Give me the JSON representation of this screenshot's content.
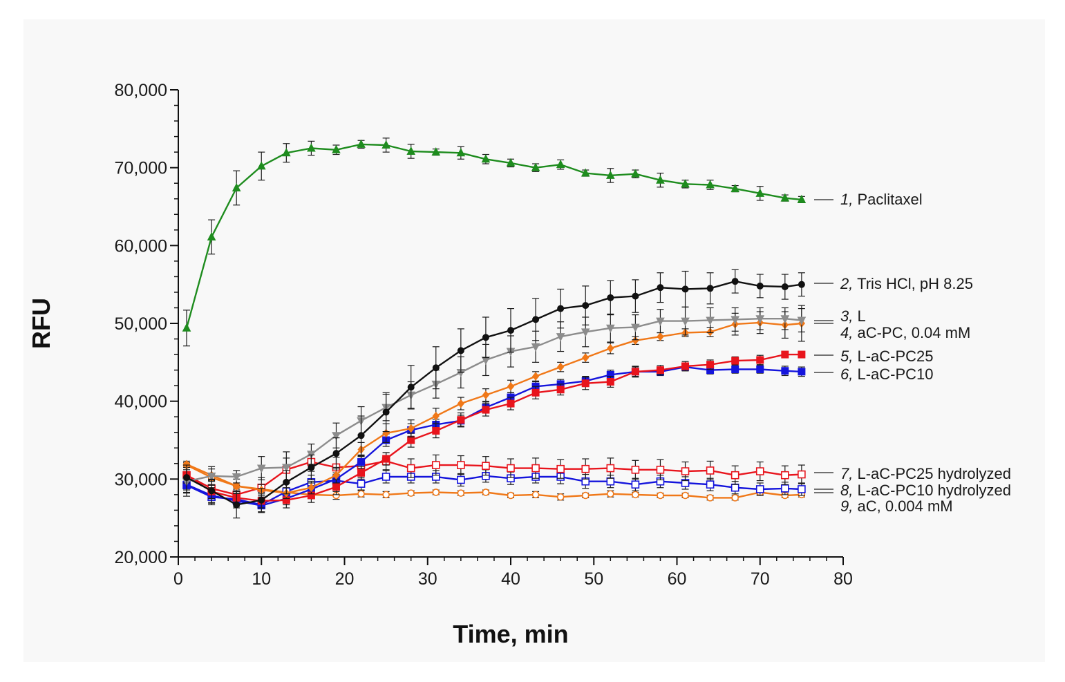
{
  "chart_data": {
    "type": "line",
    "title": "",
    "xlabel": "Time, min",
    "ylabel": "RFU",
    "xlim": [
      0,
      80
    ],
    "ylim": [
      20000,
      80000
    ],
    "xticks": [
      0,
      10,
      20,
      30,
      40,
      50,
      60,
      70,
      80
    ],
    "xtick_labels": [
      "0",
      "10",
      "20",
      "30",
      "40",
      "50",
      "60",
      "70",
      "80"
    ],
    "yticks": [
      20000,
      30000,
      40000,
      50000,
      60000,
      70000,
      80000
    ],
    "ytick_labels": [
      "20,000",
      "30,000",
      "40,000",
      "50,000",
      "60,000",
      "70,000",
      "80,000"
    ],
    "grid": false,
    "legend_placement": "right, labels at line ends",
    "x": [
      1,
      4,
      7,
      10,
      13,
      16,
      19,
      22,
      25,
      28,
      31,
      34,
      37,
      40,
      43,
      46,
      49,
      52,
      55,
      58,
      61,
      64,
      67,
      70,
      73,
      75
    ],
    "series": [
      {
        "num": "1,",
        "name": "Paclitaxel",
        "color": "#1e8c1e",
        "marker": "triangle",
        "filled": true,
        "values": [
          49400,
          61100,
          67400,
          70200,
          71900,
          72500,
          72300,
          73000,
          72900,
          72100,
          72000,
          71900,
          71100,
          70600,
          70000,
          70400,
          69300,
          69000,
          69200,
          68400,
          67900,
          67800,
          67300,
          66700,
          66100,
          65900
        ],
        "errors": [
          2300,
          2200,
          2200,
          1800,
          1200,
          900,
          600,
          500,
          900,
          900,
          400,
          800,
          600,
          500,
          500,
          600,
          400,
          900,
          500,
          900,
          500,
          600,
          400,
          900,
          400,
          400
        ]
      },
      {
        "num": "2,",
        "name": "Tris HCl, pH 8.25",
        "color": "#111111",
        "marker": "circle",
        "filled": true,
        "values": [
          30200,
          28500,
          26700,
          27300,
          29600,
          31500,
          33300,
          35600,
          38600,
          41800,
          44300,
          46500,
          48200,
          49100,
          50500,
          51900,
          52300,
          53300,
          53500,
          54600,
          54400,
          54500,
          55400,
          54800,
          54700,
          55000
        ],
        "errors": [
          1600,
          1500,
          1700,
          1500,
          1500,
          1600,
          2000,
          2500,
          2500,
          2800,
          2700,
          2800,
          2600,
          2800,
          2700,
          2500,
          2500,
          2200,
          2100,
          1900,
          2300,
          2000,
          1500,
          1500,
          1600,
          1500
        ]
      },
      {
        "num": "3,",
        "name": "L",
        "color": "#8c8c8c",
        "marker": "triangle-down",
        "filled": true,
        "values": [
          29700,
          30400,
          30300,
          31400,
          31500,
          33200,
          35600,
          37500,
          39200,
          40800,
          42200,
          43700,
          45300,
          46400,
          47000,
          48300,
          48900,
          49400,
          49500,
          50300,
          50300,
          50400,
          50500,
          50600,
          50600,
          50400
        ],
        "errors": [
          1500,
          1200,
          800,
          1500,
          2000,
          1300,
          1600,
          1800,
          1700,
          1700,
          1800,
          2000,
          2000,
          2000,
          2000,
          1900,
          1900,
          1800,
          1600,
          1500,
          1800,
          1600,
          1500,
          1400,
          1400,
          1500
        ]
      },
      {
        "num": "4,",
        "name": "aC-PC, 0.04 mM",
        "color": "#f07818",
        "marker": "diamond",
        "filled": true,
        "values": [
          31900,
          30500,
          29100,
          28600,
          28200,
          28900,
          30500,
          33800,
          35900,
          36500,
          38100,
          39700,
          40800,
          41900,
          43200,
          44400,
          45600,
          46800,
          47800,
          48300,
          48800,
          48900,
          49900,
          50100,
          49800,
          50000
        ],
        "errors": [
          400,
          800,
          900,
          700,
          700,
          800,
          1000,
          900,
          1200,
          1100,
          1000,
          800,
          800,
          800,
          600,
          600,
          600,
          700,
          500,
          500,
          500,
          600,
          1400,
          1400,
          1700,
          2300
        ]
      },
      {
        "num": "5,",
        "name": "L-aC-PC25",
        "color": "#e8141c",
        "marker": "square",
        "filled": true,
        "values": [
          30500,
          28400,
          27600,
          27200,
          27300,
          27900,
          29000,
          30800,
          32600,
          35000,
          36200,
          37600,
          38900,
          39700,
          41100,
          41500,
          42300,
          42500,
          43800,
          44000,
          44500,
          44700,
          45200,
          45300,
          46000,
          46000
        ],
        "errors": [
          1000,
          900,
          900,
          900,
          1000,
          900,
          1000,
          800,
          800,
          900,
          900,
          900,
          800,
          800,
          800,
          700,
          800,
          700,
          700,
          600,
          600,
          600,
          500,
          600,
          400,
          400
        ]
      },
      {
        "num": "6,",
        "name": "L-aC-PC10",
        "color": "#1414dc",
        "marker": "square",
        "filled": true,
        "values": [
          29300,
          27900,
          27200,
          26600,
          27500,
          28700,
          30000,
          32200,
          35000,
          36300,
          37000,
          37500,
          39200,
          40500,
          41900,
          42200,
          42600,
          43400,
          43800,
          43800,
          44400,
          44000,
          44100,
          44100,
          43900,
          43800
        ],
        "errors": [
          1000,
          1000,
          900,
          800,
          800,
          800,
          800,
          800,
          800,
          800,
          700,
          700,
          700,
          600,
          600,
          600,
          600,
          600,
          600,
          500,
          500,
          500,
          500,
          500,
          600,
          600
        ]
      },
      {
        "num": "7,",
        "name": "L-aC-PC25 hydrolyzed",
        "color": "#e8141c",
        "marker": "square",
        "filled": false,
        "values": [
          30500,
          28800,
          28000,
          28900,
          31200,
          32200,
          31500,
          31700,
          32300,
          31400,
          31800,
          31800,
          31700,
          31400,
          31400,
          31300,
          31300,
          31400,
          31200,
          31200,
          31000,
          31100,
          30500,
          31000,
          30500,
          30600
        ],
        "errors": [
          1300,
          1100,
          1200,
          1300,
          1500,
          1200,
          1300,
          1200,
          1100,
          1200,
          1300,
          1200,
          1200,
          1200,
          1300,
          1200,
          1300,
          1300,
          1200,
          1300,
          1200,
          1200,
          1200,
          1200,
          1200,
          1200
        ]
      },
      {
        "num": "8,",
        "name": "L-aC-PC10 hydrolyzed",
        "color": "#1414dc",
        "marker": "square",
        "filled": false,
        "values": [
          29200,
          27700,
          27400,
          26700,
          28400,
          29600,
          29800,
          29400,
          30300,
          30300,
          30300,
          29900,
          30400,
          30100,
          30300,
          30300,
          29700,
          29700,
          29300,
          29700,
          29500,
          29300,
          28900,
          28700,
          28800,
          28700
        ],
        "errors": [
          1400,
          1000,
          900,
          1000,
          1100,
          900,
          800,
          800,
          800,
          800,
          800,
          800,
          800,
          800,
          800,
          900,
          900,
          800,
          800,
          800,
          800,
          800,
          800,
          800,
          800,
          800
        ]
      },
      {
        "num": "9,",
        "name": "aC, 0.004 mM",
        "color": "#f07818",
        "marker": "circle",
        "filled": false,
        "values": [
          31800,
          30200,
          29100,
          28700,
          28300,
          28000,
          27900,
          28100,
          28000,
          28200,
          28300,
          28200,
          28300,
          27900,
          28000,
          27700,
          27900,
          28100,
          28000,
          27900,
          27900,
          27600,
          27600,
          28300,
          27900,
          28000
        ],
        "errors": [
          300,
          400,
          400,
          400,
          400,
          500,
          500,
          400,
          400,
          300,
          300,
          300,
          300,
          300,
          400,
          400,
          300,
          400,
          300,
          300,
          300,
          300,
          300,
          300,
          300,
          300
        ]
      }
    ]
  }
}
